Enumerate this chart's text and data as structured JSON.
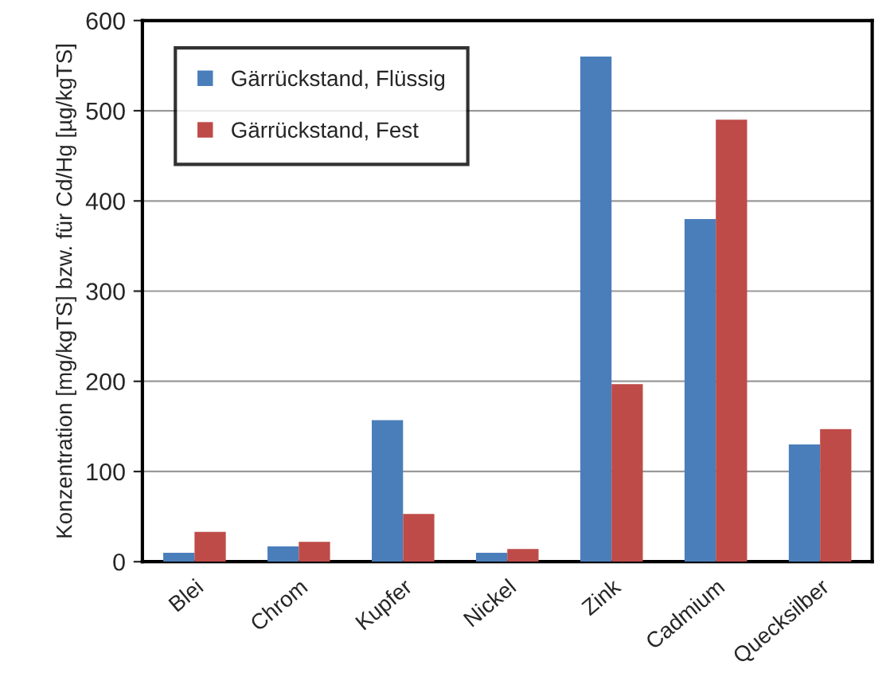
{
  "chart_data": {
    "type": "bar",
    "ylabel": "Konzentration [mg/kgTS] bzw. für Cd/Hg [µg/kgTS]",
    "categories": [
      "Blei",
      "Chrom",
      "Kupfer",
      "Nickel",
      "Zink",
      "Cadmium",
      "Quecksilber"
    ],
    "series": [
      {
        "name": "Gärrückstand, Flüssig",
        "color": "#4a7ebb",
        "values": [
          10,
          17,
          157,
          10,
          560,
          380,
          130
        ]
      },
      {
        "name": "Gärrückstand, Fest",
        "color": "#be4b48",
        "values": [
          33,
          22,
          53,
          14,
          197,
          490,
          147
        ]
      }
    ],
    "ylim": [
      0,
      600
    ],
    "yticks": [
      0,
      100,
      200,
      300,
      400,
      500,
      600
    ],
    "grid": "y",
    "legend": "top left"
  }
}
